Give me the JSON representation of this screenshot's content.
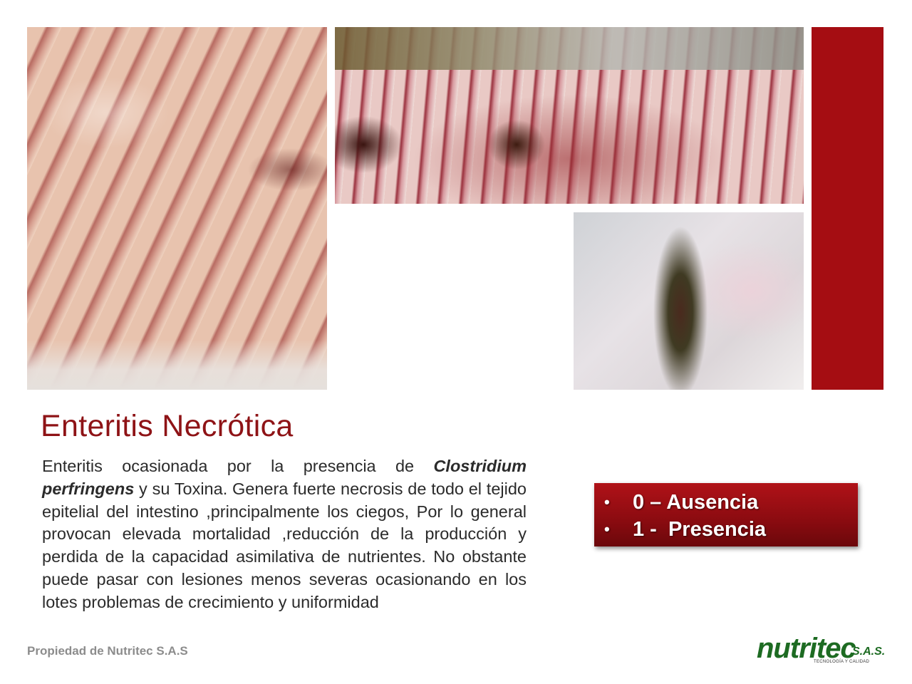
{
  "title": "Enteritis Necrótica",
  "description": {
    "part1": "Enteritis ocasionada por la presencia de ",
    "organism": "Clostridium perfringens",
    "part2": " y su Toxina. Genera fuerte necrosis de todo el  tejido epitelial del intestino ,principalmente los ciegos, Por lo general provocan elevada mortalidad ,reducción de la producción y perdida de la capacidad asimilativa de nutrientes. No obstante puede pasar con lesiones menos severas ocasionando en los lotes problemas de crecimiento y uniformidad"
  },
  "legend": {
    "items": [
      {
        "bullet": "•",
        "label": "0 – Ausencia"
      },
      {
        "bullet": "•",
        "label": "1 -  Presencia"
      }
    ]
  },
  "footer": "Propiedad de Nutritec S.A.S",
  "logo": {
    "name": "nutritec",
    "suffix": "S.A.S.",
    "tagline": "TECNOLOGÍA Y CALIDAD"
  },
  "colors": {
    "accent_red": "#a50d12",
    "title_red": "#8e1316",
    "logo_green": "#1d6b22"
  }
}
